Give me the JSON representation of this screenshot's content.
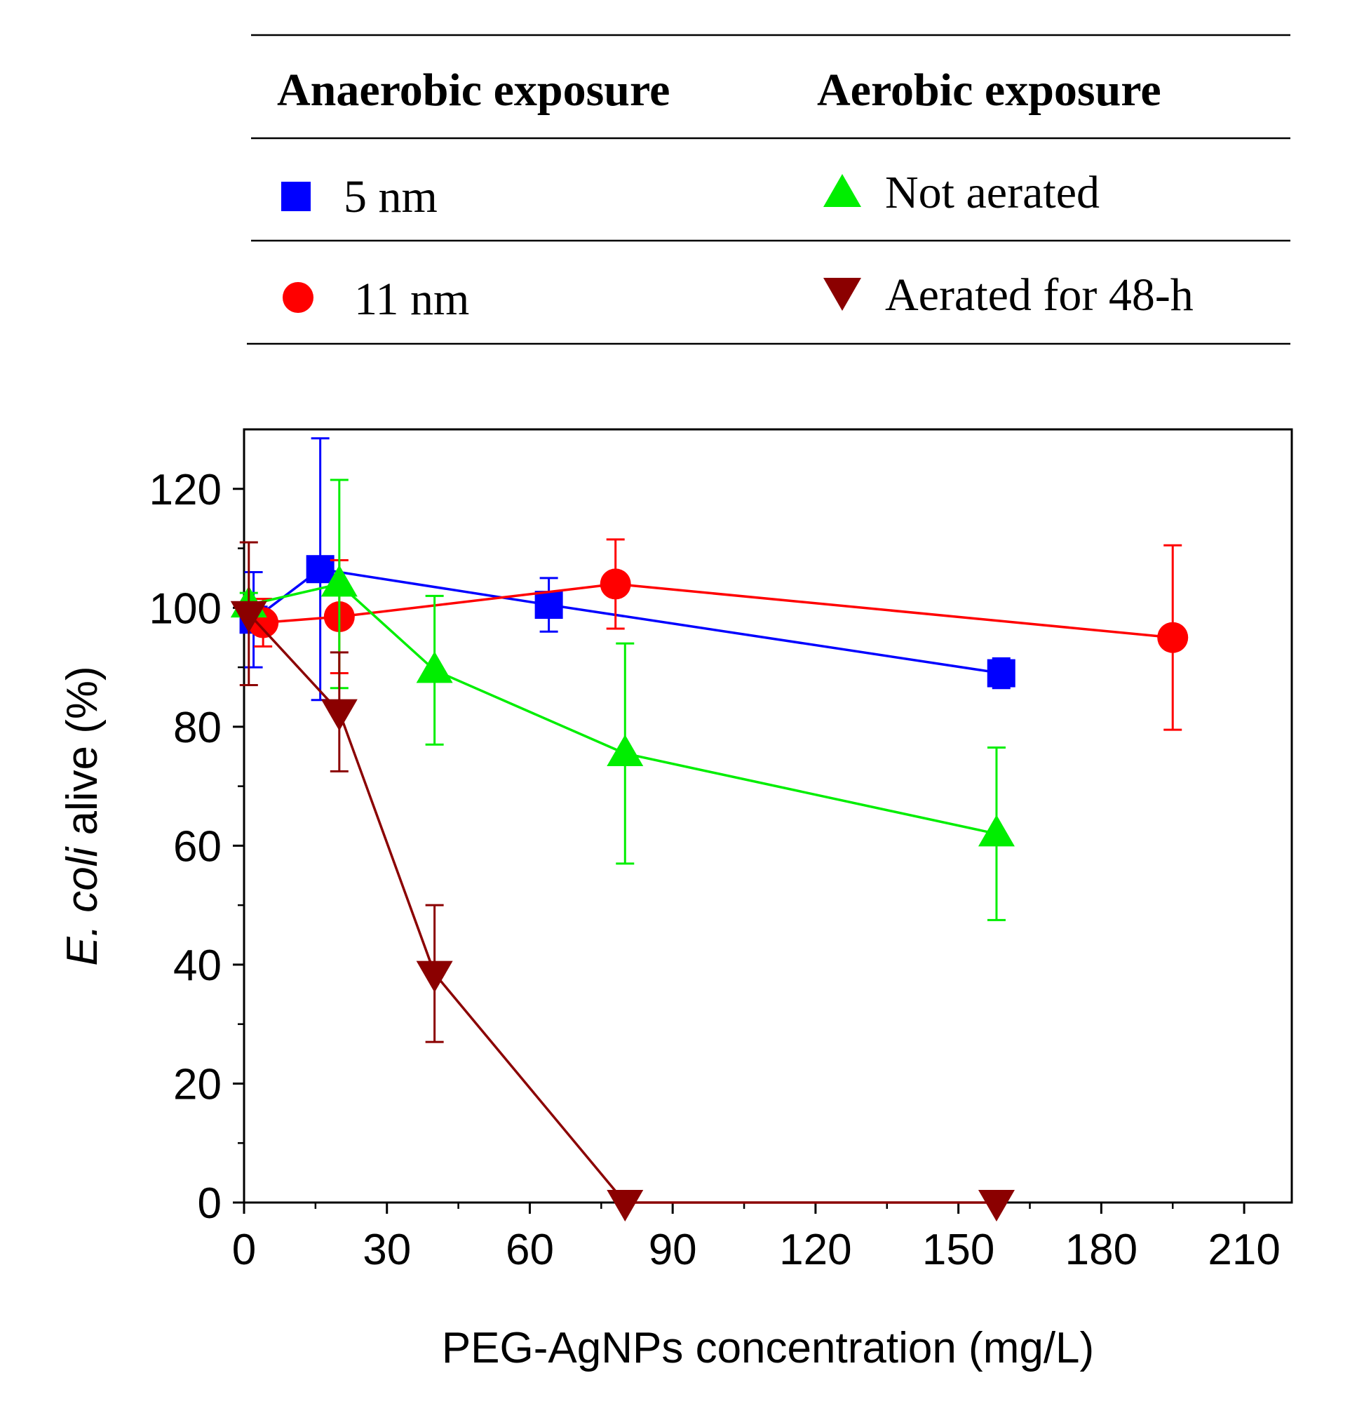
{
  "chart_data": {
    "type": "line",
    "xlabel": "PEG-AgNPs concentration (mg/L)",
    "ylabel": {
      "italic": "E. coli",
      "plain": " alive (%)"
    },
    "xlim": [
      0,
      220
    ],
    "ylim": [
      0,
      130
    ],
    "xticks": [
      0,
      30,
      60,
      90,
      120,
      150,
      180,
      210
    ],
    "yticks": [
      0,
      20,
      40,
      60,
      80,
      100,
      120
    ],
    "legend": {
      "headers": [
        "Anaerobic exposure",
        "Aerobic exposure"
      ],
      "placement": "top"
    },
    "series": [
      {
        "name": "5 nm",
        "group": "Anaerobic exposure",
        "marker": "square",
        "color": "#0000ff",
        "points": [
          {
            "x": 2,
            "y": 98,
            "err": 8
          },
          {
            "x": 16,
            "y": 106.5,
            "err": 22
          },
          {
            "x": 64,
            "y": 100.5,
            "err": 4.5
          },
          {
            "x": 159,
            "y": 89,
            "err": 2.5
          }
        ]
      },
      {
        "name": "11 nm",
        "group": "Anaerobic exposure",
        "marker": "circle",
        "color": "#ff0000",
        "points": [
          {
            "x": 4,
            "y": 97.5,
            "err": 4
          },
          {
            "x": 20,
            "y": 98.5,
            "err": 9.5
          },
          {
            "x": 78,
            "y": 104,
            "err": 7.5
          },
          {
            "x": 195,
            "y": 95,
            "err": 15.5
          }
        ]
      },
      {
        "name": "Not aerated",
        "group": "Aerobic exposure",
        "marker": "triangle-up",
        "color": "#00ee00",
        "points": [
          {
            "x": 1,
            "y": 100.5,
            "err": 2
          },
          {
            "x": 20,
            "y": 104,
            "err": 17.5
          },
          {
            "x": 40,
            "y": 89.5,
            "err": 12.5
          },
          {
            "x": 80,
            "y": 75.5,
            "err": 18.5
          },
          {
            "x": 158,
            "y": 62,
            "err": 14.5
          }
        ]
      },
      {
        "name": "Aerated for 48-h",
        "group": "Aerobic exposure",
        "marker": "triangle-down",
        "color": "#8b0000",
        "points": [
          {
            "x": 1,
            "y": 99,
            "err": 12
          },
          {
            "x": 20,
            "y": 82.5,
            "err": 10
          },
          {
            "x": 40,
            "y": 38.5,
            "err": 11.5
          },
          {
            "x": 80,
            "y": 0,
            "err": 0
          },
          {
            "x": 158,
            "y": 0,
            "err": 0
          }
        ]
      }
    ]
  }
}
